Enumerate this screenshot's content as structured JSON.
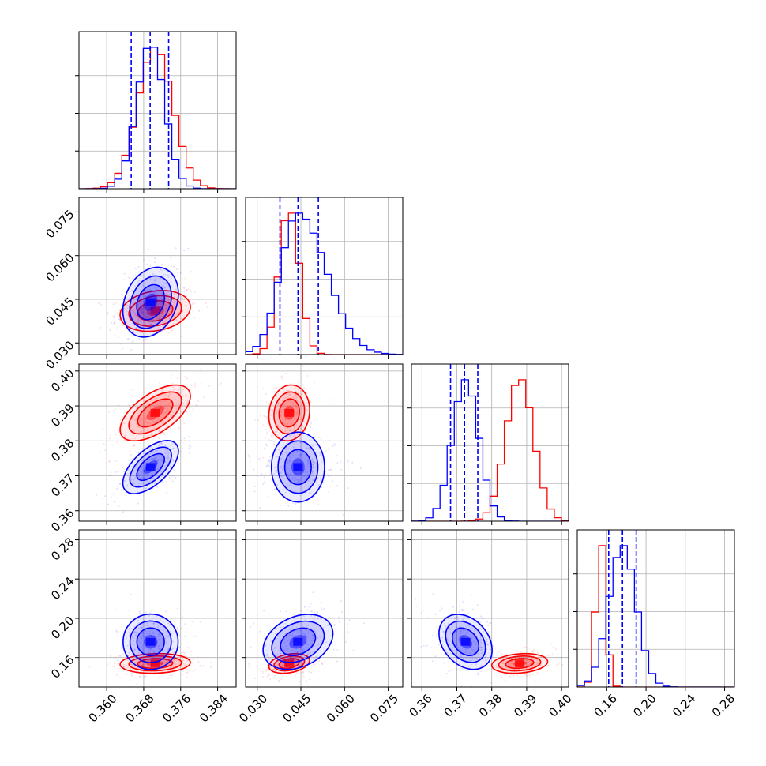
{
  "chart_data": {
    "type": "scatter",
    "figure_kind": "corner",
    "grid": true,
    "colors": {
      "series_a": "#0000ff",
      "series_b": "#ff0000"
    },
    "parameters": [
      {
        "range": [
          0.354,
          0.388
        ],
        "ticks": [
          "0.360",
          "0.368",
          "0.376",
          "0.384"
        ],
        "tick_values": [
          0.36,
          0.368,
          0.376,
          0.384
        ]
      },
      {
        "range": [
          0.026,
          0.08
        ],
        "ticks": [
          "0.030",
          "0.045",
          "0.060",
          "0.075"
        ],
        "tick_values": [
          0.03,
          0.045,
          0.06,
          0.075
        ]
      },
      {
        "range": [
          0.357,
          0.402
        ],
        "ticks": [
          "0.36",
          "0.37",
          "0.38",
          "0.39",
          "0.40"
        ],
        "tick_values": [
          0.36,
          0.37,
          0.38,
          0.39,
          0.4
        ]
      },
      {
        "range": [
          0.13,
          0.29
        ],
        "ticks": [
          "0.16",
          "0.20",
          "0.24",
          "0.28"
        ],
        "tick_values": [
          0.16,
          0.2,
          0.24,
          0.28
        ]
      }
    ],
    "series": [
      {
        "color": "#0000ff",
        "means": [
          0.3695,
          0.044,
          0.3725,
          0.176
        ],
        "sigmas": [
          0.003,
          0.006,
          0.0038,
          0.014
        ],
        "correlations": [
          [
            0,
            1,
            0.25
          ],
          [
            0,
            2,
            0.6
          ],
          [
            0,
            3,
            0.0
          ],
          [
            1,
            2,
            0.0
          ],
          [
            1,
            3,
            0.3
          ],
          [
            2,
            3,
            -0.3
          ]
        ],
        "quantiles": [
          [
            0.3653,
            0.3694,
            0.3734
          ],
          [
            0.0378,
            0.044,
            0.051
          ],
          [
            0.3682,
            0.3722,
            0.376
          ],
          [
            0.162,
            0.176,
            0.19
          ]
        ]
      },
      {
        "color": "#ff0000",
        "means": [
          0.3705,
          0.041,
          0.388,
          0.154
        ],
        "sigmas": [
          0.0038,
          0.0035,
          0.004,
          0.005
        ],
        "correlations": [
          [
            0,
            1,
            0.2
          ],
          [
            0,
            2,
            0.6
          ],
          [
            0,
            3,
            0.1
          ],
          [
            1,
            2,
            0.1
          ],
          [
            1,
            3,
            0.3
          ],
          [
            2,
            3,
            0.2
          ]
        ]
      }
    ]
  }
}
